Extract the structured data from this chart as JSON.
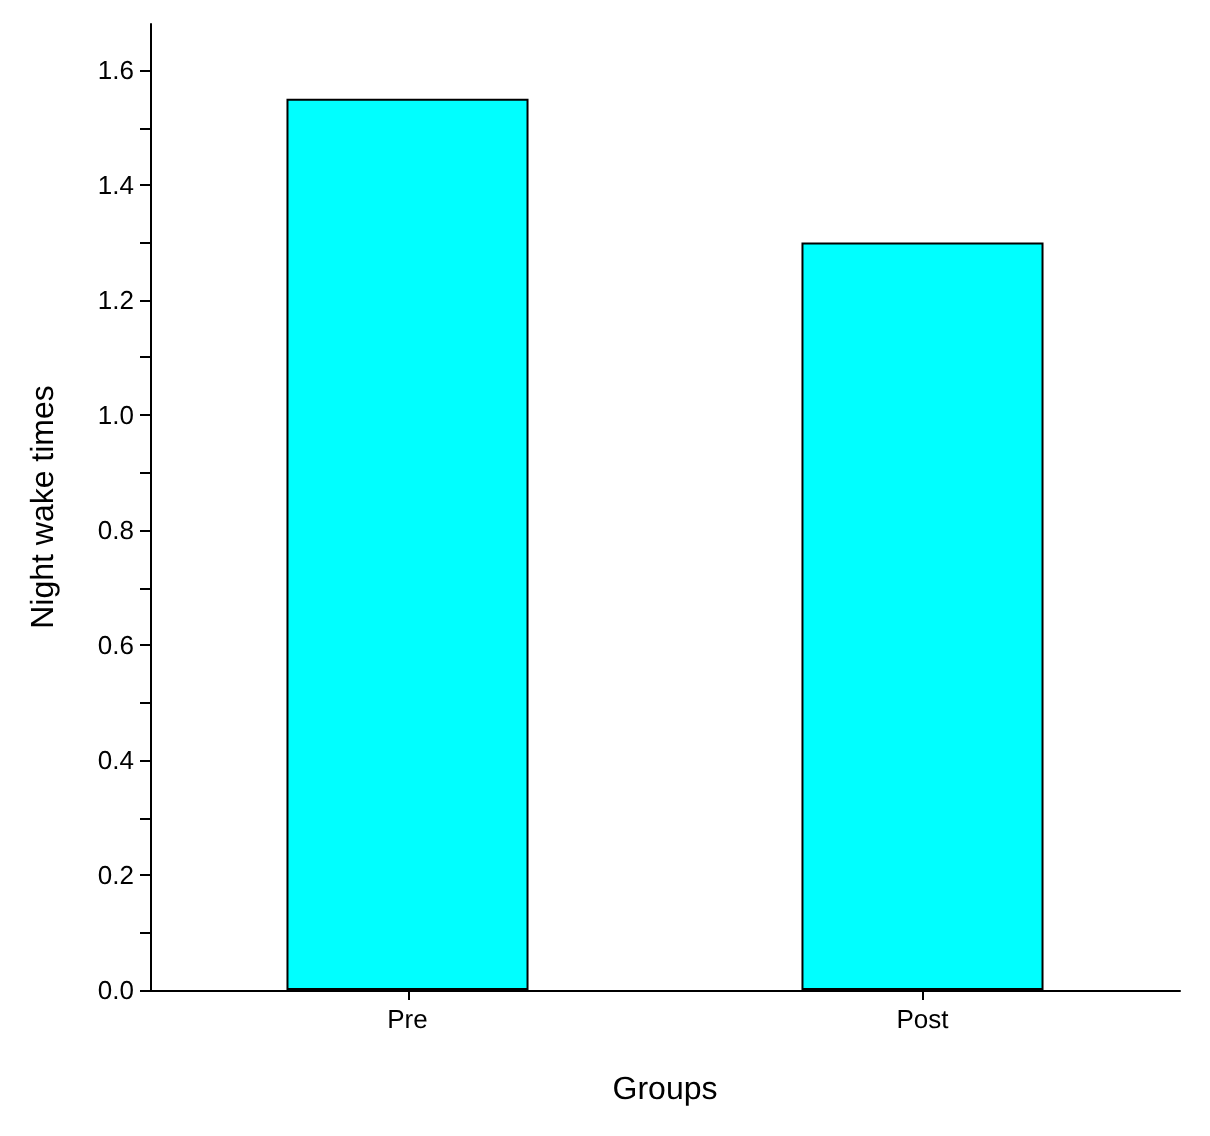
{
  "chart_data": {
    "type": "bar",
    "xlabel": "Groups",
    "ylabel": "Night wake times",
    "categories": [
      "Pre",
      "Post"
    ],
    "values": [
      1.55,
      1.3
    ],
    "color": "#00ffff",
    "ylim": [
      0,
      1.68
    ],
    "yticks": [
      {
        "value": 0,
        "label": "0.0"
      },
      {
        "value": 0.1,
        "label": null
      },
      {
        "value": 0.2,
        "label": "0.2"
      },
      {
        "value": 0.3,
        "label": null
      },
      {
        "value": 0.4,
        "label": "0.4"
      },
      {
        "value": 0.5,
        "label": null
      },
      {
        "value": 0.6,
        "label": "0.6"
      },
      {
        "value": 0.7,
        "label": null
      },
      {
        "value": 0.8,
        "label": "0.8"
      },
      {
        "value": 0.9,
        "label": null
      },
      {
        "value": 1,
        "label": "1.0"
      },
      {
        "value": 1.1,
        "label": null
      },
      {
        "value": 1.2,
        "label": "1.2"
      },
      {
        "value": 1.3,
        "label": null
      },
      {
        "value": 1.4,
        "label": "1.4"
      },
      {
        "value": 1.5,
        "label": null
      },
      {
        "value": 1.6,
        "label": "1.6"
      }
    ],
    "grid": false
  }
}
